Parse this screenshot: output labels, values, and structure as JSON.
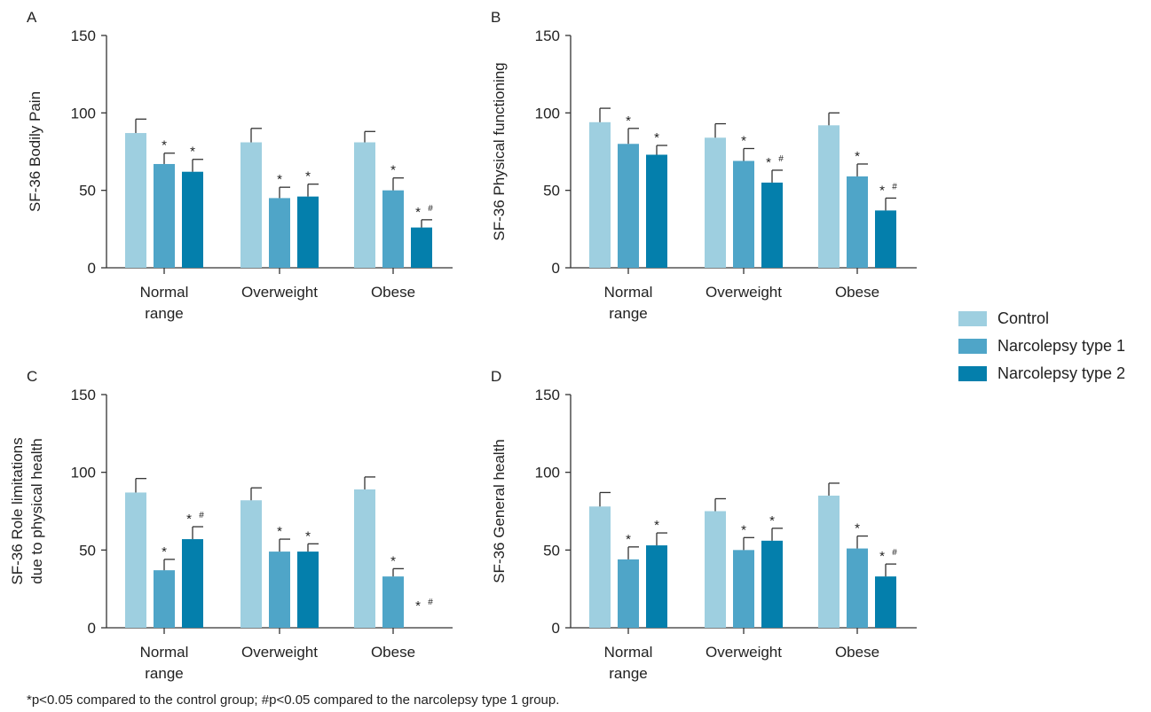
{
  "colors": {
    "control": "#9ecfe0",
    "nt1": "#4fa5c8",
    "nt2": "#047fac",
    "axis": "#333333",
    "text": "#222222"
  },
  "legend": {
    "items": [
      {
        "label": "Control",
        "color": "#9ecfe0"
      },
      {
        "label": "Narcolepsy type 1",
        "color": "#4fa5c8"
      },
      {
        "label": "Narcolepsy type 2",
        "color": "#047fac"
      }
    ]
  },
  "footnote": "*p<0.05 compared to the control group; #p<0.05 compared to the narcolepsy type 1 group.",
  "chart_data": [
    {
      "type": "bar",
      "panel_label": "A",
      "ylabel": [
        "SF-36 Bodily Pain"
      ],
      "categories": [
        [
          "Normal",
          "range"
        ],
        [
          "Overweight"
        ],
        [
          "Obese"
        ]
      ],
      "ylim": [
        0,
        150
      ],
      "yticks": [
        0,
        50,
        100,
        150
      ],
      "series": [
        {
          "name": "Control",
          "values": [
            87,
            81,
            81
          ],
          "errors": [
            9,
            9,
            7
          ],
          "annotations": [
            "",
            "",
            ""
          ]
        },
        {
          "name": "Narcolepsy type 1",
          "values": [
            67,
            45,
            50
          ],
          "errors": [
            7,
            7,
            8
          ],
          "annotations": [
            "*",
            "*",
            "*"
          ]
        },
        {
          "name": "Narcolepsy type 2",
          "values": [
            62,
            46,
            26
          ],
          "errors": [
            8,
            8,
            5
          ],
          "annotations": [
            "*",
            "*",
            "* #"
          ]
        }
      ]
    },
    {
      "type": "bar",
      "panel_label": "B",
      "ylabel": [
        "SF-36 Physical functioning"
      ],
      "categories": [
        [
          "Normal",
          "range"
        ],
        [
          "Overweight"
        ],
        [
          "Obese"
        ]
      ],
      "ylim": [
        0,
        150
      ],
      "yticks": [
        0,
        50,
        100,
        150
      ],
      "series": [
        {
          "name": "Control",
          "values": [
            94,
            84,
            92
          ],
          "errors": [
            9,
            9,
            8
          ],
          "annotations": [
            "",
            "",
            ""
          ]
        },
        {
          "name": "Narcolepsy type 1",
          "values": [
            80,
            69,
            59
          ],
          "errors": [
            10,
            8,
            8
          ],
          "annotations": [
            "*",
            "*",
            "*"
          ]
        },
        {
          "name": "Narcolepsy type 2",
          "values": [
            73,
            55,
            37
          ],
          "errors": [
            6,
            8,
            8
          ],
          "annotations": [
            "*",
            "* #",
            "* #"
          ]
        }
      ]
    },
    {
      "type": "bar",
      "panel_label": "C",
      "ylabel": [
        "SF-36 Role limitations",
        "due to physical health"
      ],
      "categories": [
        [
          "Normal",
          "range"
        ],
        [
          "Overweight"
        ],
        [
          "Obese"
        ]
      ],
      "ylim": [
        0,
        150
      ],
      "yticks": [
        0,
        50,
        100,
        150
      ],
      "series": [
        {
          "name": "Control",
          "values": [
            87,
            82,
            89
          ],
          "errors": [
            9,
            8,
            8
          ],
          "annotations": [
            "",
            "",
            ""
          ]
        },
        {
          "name": "Narcolepsy type 1",
          "values": [
            37,
            49,
            33
          ],
          "errors": [
            7,
            8,
            5
          ],
          "annotations": [
            "*",
            "*",
            "*"
          ]
        },
        {
          "name": "Narcolepsy type 2",
          "values": [
            57,
            49,
            0
          ],
          "errors": [
            8,
            5,
            0
          ],
          "annotations": [
            "* #",
            "*",
            "* #"
          ]
        }
      ]
    },
    {
      "type": "bar",
      "panel_label": "D",
      "ylabel": [
        "SF-36 General health"
      ],
      "categories": [
        [
          "Normal",
          "range"
        ],
        [
          "Overweight"
        ],
        [
          "Obese"
        ]
      ],
      "ylim": [
        0,
        150
      ],
      "yticks": [
        0,
        50,
        100,
        150
      ],
      "series": [
        {
          "name": "Control",
          "values": [
            78,
            75,
            85
          ],
          "errors": [
            9,
            8,
            8
          ],
          "annotations": [
            "",
            "",
            ""
          ]
        },
        {
          "name": "Narcolepsy type 1",
          "values": [
            44,
            50,
            51
          ],
          "errors": [
            8,
            8,
            8
          ],
          "annotations": [
            "*",
            "*",
            "*"
          ]
        },
        {
          "name": "Narcolepsy type 2",
          "values": [
            53,
            56,
            33
          ],
          "errors": [
            8,
            8,
            8
          ],
          "annotations": [
            "*",
            "*",
            "* #"
          ]
        }
      ]
    }
  ]
}
